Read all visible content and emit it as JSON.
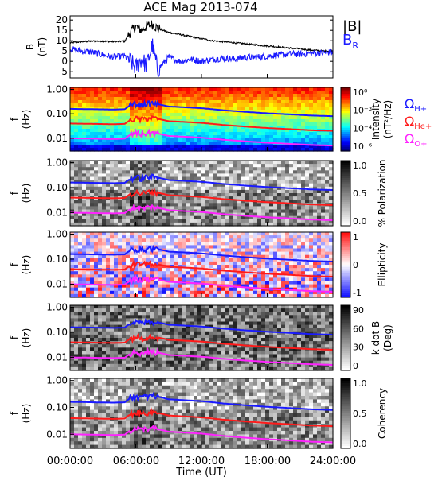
{
  "title": "ACE Mag 2013-074",
  "colors": {
    "B_total": "#000000",
    "B_R": "#1a1aff",
    "H_plus": "#1a1aff",
    "He_plus": "#ff1a1a",
    "O_plus": "#ff22ff"
  },
  "chart_data": [
    {
      "type": "line",
      "panel": "magnetic-field",
      "ylabel": "B\n(nT)",
      "ylim": [
        -8,
        22
      ],
      "yticks": [
        "20",
        "15",
        "10",
        "5",
        "0",
        "-5"
      ],
      "xlim": [
        0,
        24
      ],
      "series": [
        {
          "name": "|B|",
          "x": [
            0,
            1,
            2,
            3,
            4,
            5,
            5.5,
            6,
            6.5,
            7,
            7.5,
            8,
            9,
            10,
            11,
            12,
            13,
            14,
            15,
            16,
            17,
            18,
            19,
            20,
            21,
            22,
            23,
            24
          ],
          "values": [
            9,
            9.5,
            9.8,
            9.8,
            9.5,
            9.8,
            14,
            17,
            15,
            17,
            18,
            16,
            14,
            13,
            12,
            11,
            10,
            9.5,
            9,
            8.5,
            8,
            7.5,
            7,
            6.5,
            6,
            5.5,
            5,
            5
          ]
        },
        {
          "name": "B_R",
          "x": [
            0,
            1,
            2,
            3,
            4,
            5,
            5.5,
            6,
            6.5,
            7,
            7.5,
            8,
            9,
            10,
            11,
            12,
            13,
            14,
            15,
            16,
            17,
            18,
            19,
            20,
            21,
            22,
            23,
            24
          ],
          "values": [
            6,
            5,
            4.5,
            3,
            2,
            2.5,
            0,
            -3,
            1,
            -2,
            8,
            -4,
            2,
            0,
            1,
            0,
            1,
            1.5,
            1,
            2,
            2,
            2.5,
            3,
            3.5,
            3.5,
            4,
            4,
            4.5
          ]
        }
      ]
    },
    {
      "type": "heatmap",
      "panel": "power-spectrum",
      "ylabel": "f\n(Hz)",
      "yscale": "log",
      "ylim": [
        0.003,
        1.2
      ],
      "yticks": [
        "1.00",
        "0.10",
        "0.01"
      ],
      "colorbar": {
        "label": "Intensity\n(nT²/Hz)",
        "ticks": [
          "10⁰",
          "10⁻²",
          "10⁻⁴",
          "10⁻⁶"
        ],
        "scale": "log",
        "range": [
          -6.5,
          0.5
        ]
      }
    },
    {
      "type": "heatmap",
      "panel": "polarization",
      "ylabel": "f\n(Hz)",
      "yscale": "log",
      "ylim": [
        0.003,
        1.2
      ],
      "yticks": [
        "1.00",
        "0.10",
        "0.01"
      ],
      "colorbar": {
        "label": "% Polarization",
        "ticks": [
          "1.0",
          "0.5",
          "0.0"
        ],
        "range": [
          0,
          1
        ]
      }
    },
    {
      "type": "heatmap",
      "panel": "ellipticity",
      "ylabel": "f\n(Hz)",
      "yscale": "log",
      "ylim": [
        0.003,
        1.2
      ],
      "yticks": [
        "1.00",
        "0.10",
        "0.01"
      ],
      "colorbar": {
        "label": "Ellipticity",
        "ticks": [
          "1",
          "0",
          "-1"
        ],
        "range": [
          -1,
          1
        ]
      }
    },
    {
      "type": "heatmap",
      "panel": "k-dot-b",
      "ylabel": "f\n(Hz)",
      "yscale": "log",
      "ylim": [
        0.003,
        1.2
      ],
      "yticks": [
        "1.00",
        "0.10",
        "0.01"
      ],
      "colorbar": {
        "label": "k dot B\n(Deg)",
        "ticks": [
          "90",
          "60",
          "30",
          "0"
        ],
        "range": [
          0,
          90
        ]
      }
    },
    {
      "type": "heatmap",
      "panel": "coherency",
      "ylabel": "f\n(Hz)",
      "yscale": "log",
      "ylim": [
        0.003,
        1.2
      ],
      "yticks": [
        "1.00",
        "0.10",
        "0.01"
      ],
      "colorbar": {
        "label": "Coherency",
        "ticks": [
          "1.0",
          "0.5",
          "0.0"
        ],
        "range": [
          0,
          1
        ]
      }
    }
  ],
  "gyrofrequency_lines": {
    "x": [
      0,
      2,
      4,
      5,
      5.5,
      6,
      6.5,
      7,
      7.5,
      8,
      9,
      10,
      12,
      14,
      16,
      18,
      20,
      22,
      24
    ],
    "H_plus": [
      0.16,
      0.155,
      0.15,
      0.155,
      0.22,
      0.26,
      0.23,
      0.26,
      0.27,
      0.25,
      0.2,
      0.19,
      0.17,
      0.14,
      0.12,
      0.105,
      0.095,
      0.085,
      0.08
    ]
  },
  "gyro_legend": {
    "H_plus": "ΩH+",
    "He_plus": "ΩHe+",
    "O_plus": "ΩO+"
  },
  "b_legend": {
    "total": "|B|",
    "radial": "B_R"
  },
  "x_axis": {
    "ticks": [
      "00:00:00",
      "06:00:00",
      "12:00:00",
      "18:00:00",
      "24:00:00"
    ],
    "label": "Time (UT)"
  }
}
